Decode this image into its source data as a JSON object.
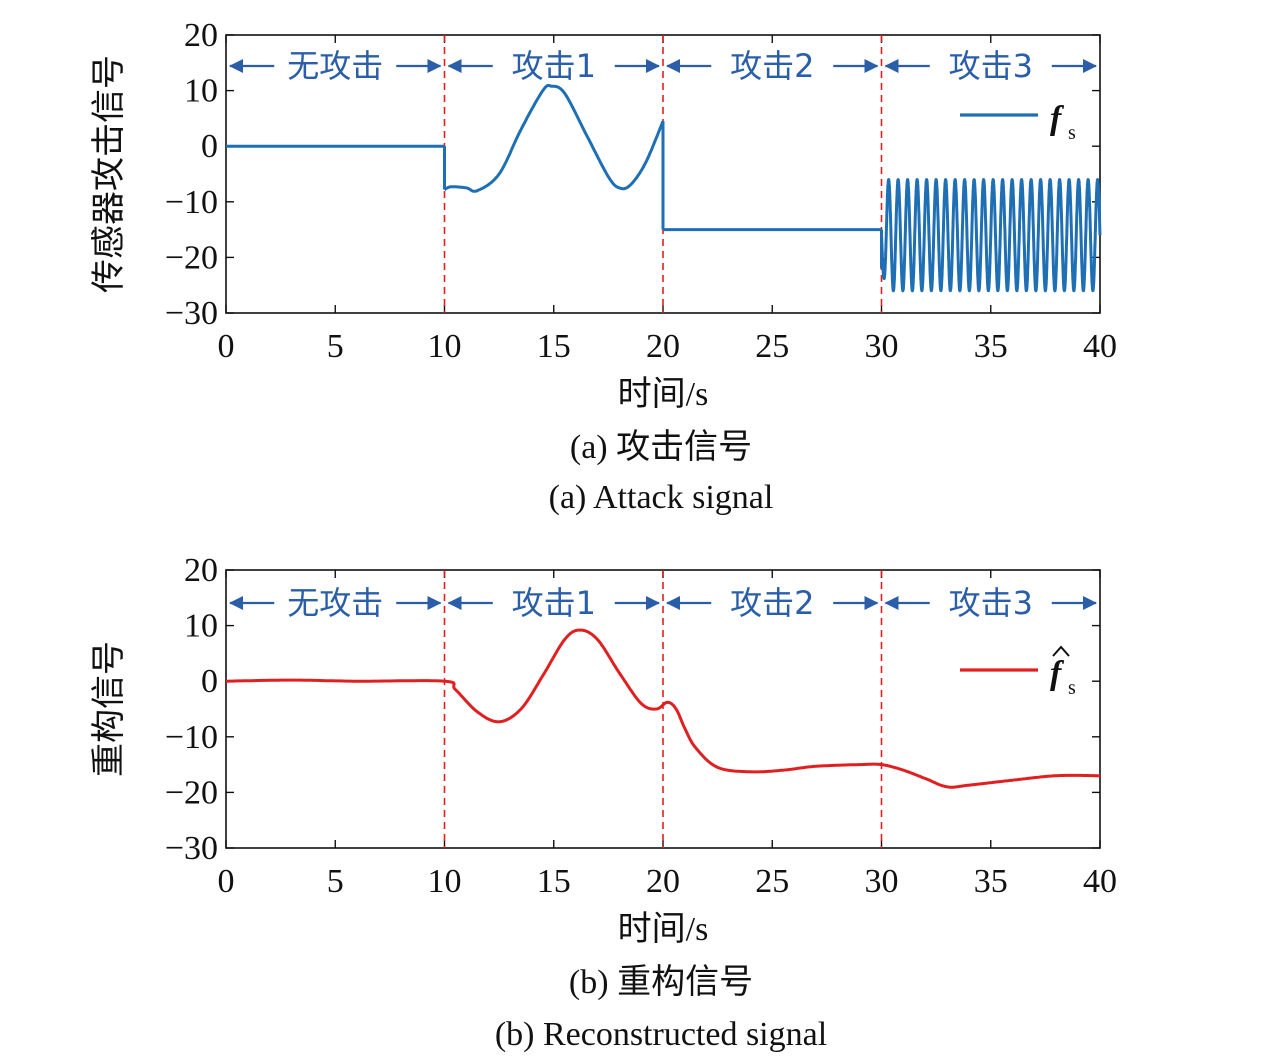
{
  "colors": {
    "attack_line": "#1f6fb4",
    "recon_line": "#e02020",
    "boundary": "#e02020",
    "region_text": "#2a5ea8"
  },
  "chart_data": [
    {
      "type": "line",
      "caption_cn": "(a) 攻击信号",
      "caption_en": "(a) Attack signal",
      "xlabel": "时间/s",
      "ylabel": "传感器攻击信号",
      "xlim": [
        0,
        40
      ],
      "ylim": [
        -30,
        20
      ],
      "xticks": [
        0,
        5,
        10,
        15,
        20,
        25,
        30,
        35,
        40
      ],
      "yticks": [
        20,
        10,
        0,
        -10,
        -20,
        -30
      ],
      "grid": false,
      "legend": {
        "position": "top-right",
        "label": "f",
        "subscript": "s",
        "hat": false
      },
      "boundaries": [
        10,
        20,
        30
      ],
      "regions": [
        {
          "label": "无攻击",
          "x_start": 0,
          "x_end": 10
        },
        {
          "label": "攻击1",
          "x_start": 10,
          "x_end": 20
        },
        {
          "label": "攻击2",
          "x_start": 20,
          "x_end": 30
        },
        {
          "label": "攻击3",
          "x_start": 30,
          "x_end": 40
        }
      ],
      "series": [
        {
          "color": "#1f6fb4",
          "segments": [
            {
              "x": [
                0,
                10
              ],
              "y": [
                0,
                0
              ]
            },
            {
              "x": [
                10,
                10.3,
                11,
                11.5,
                12.5,
                13.5,
                14.5,
                14.9,
                15.5,
                16.5,
                17.5,
                18,
                18.5,
                19.2,
                20
              ],
              "y": [
                -7.8,
                -7.3,
                -7.5,
                -8,
                -5,
                3,
                10,
                10.8,
                9.5,
                2,
                -5.5,
                -7.5,
                -7,
                -3,
                4.5
              ]
            },
            {
              "x": [
                20,
                30
              ],
              "y": [
                -15,
                -15
              ]
            },
            {
              "x_start": 30,
              "x_end": 40,
              "center": -16,
              "amplitude": 10,
              "frequency_hz": 2.3
            }
          ]
        }
      ]
    },
    {
      "type": "line",
      "caption_cn": "(b) 重构信号",
      "caption_en": "(b) Reconstructed signal",
      "xlabel": "时间/s",
      "ylabel": "重构信号",
      "xlim": [
        0,
        40
      ],
      "ylim": [
        -30,
        20
      ],
      "xticks": [
        0,
        5,
        10,
        15,
        20,
        25,
        30,
        35,
        40
      ],
      "yticks": [
        20,
        10,
        0,
        -10,
        -20,
        -30
      ],
      "grid": false,
      "legend": {
        "position": "top-right",
        "label": "f",
        "subscript": "s",
        "hat": true
      },
      "boundaries": [
        10,
        20,
        30
      ],
      "regions": [
        {
          "label": "无攻击",
          "x_start": 0,
          "x_end": 10
        },
        {
          "label": "攻击1",
          "x_start": 10,
          "x_end": 20
        },
        {
          "label": "攻击2",
          "x_start": 20,
          "x_end": 30
        },
        {
          "label": "攻击3",
          "x_start": 30,
          "x_end": 40
        }
      ],
      "series": [
        {
          "color": "#e02020",
          "segments": [
            {
              "x": [
                0,
                3,
                6,
                10,
                10.5,
                11.5,
                12.5,
                13.5,
                14.5,
                15.5,
                16.2,
                17,
                18,
                19,
                19.7,
                20.2,
                20.6,
                21,
                21.5,
                22.5,
                24,
                25.5,
                27,
                29,
                30,
                31,
                32,
                33,
                34,
                36,
                38,
                40
              ],
              "y": [
                0,
                0.2,
                0,
                0,
                -1.5,
                -5.5,
                -7.3,
                -5,
                1,
                7.5,
                9.2,
                7.5,
                1.5,
                -4,
                -5,
                -3.8,
                -5,
                -8.5,
                -12,
                -15.5,
                -16.3,
                -16,
                -15.3,
                -15,
                -15,
                -16,
                -17.5,
                -19,
                -18.7,
                -17.8,
                -17,
                -17
              ]
            }
          ]
        }
      ]
    }
  ]
}
